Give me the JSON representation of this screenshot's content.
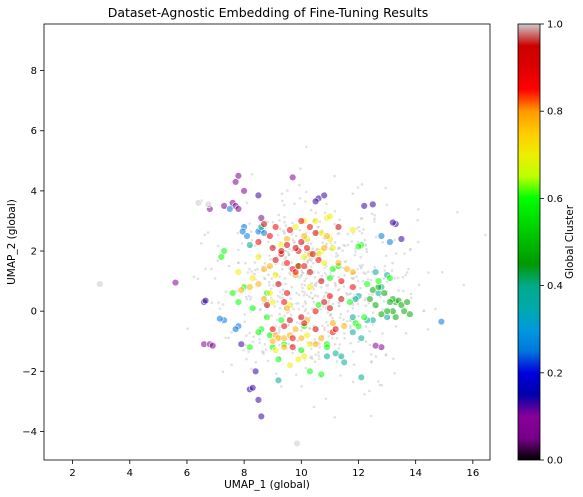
{
  "chart_data": {
    "type": "scatter",
    "title": "Dataset-Agnostic Embedding of Fine-Tuning Results",
    "xlabel": "UMAP_1 (global)",
    "ylabel": "UMAP_2 (global)",
    "xlim": [
      1.0,
      16.6
    ],
    "ylim": [
      -4.95,
      9.55
    ],
    "xticks": [
      "2",
      "4",
      "6",
      "8",
      "10",
      "12",
      "14",
      "16"
    ],
    "xtick_values": [
      2,
      4,
      6,
      8,
      10,
      12,
      14,
      16
    ],
    "yticks": [
      "−4",
      "−2",
      "0",
      "2",
      "4",
      "6",
      "8"
    ],
    "ytick_values": [
      -4,
      -2,
      0,
      2,
      4,
      6,
      8
    ],
    "grid": false,
    "colormap": "nipy_spectral",
    "colorbar": {
      "label": "Global Cluster",
      "range": [
        0,
        1
      ],
      "ticks": [
        "0.0",
        "0.2",
        "0.4",
        "0.6",
        "0.8",
        "1.0"
      ],
      "tick_values": [
        0.0,
        0.2,
        0.4,
        0.6,
        0.8,
        1.0
      ]
    },
    "background_points": {
      "color": "#c8c8c8",
      "center": [
        10.5,
        0.8
      ],
      "spread": [
        1.7,
        1.6
      ]
    },
    "series": [
      {
        "color_value": 0.07,
        "points": [
          [
            7.6,
            3.6
          ],
          [
            7.7,
            3.5
          ],
          [
            7.8,
            3.4
          ],
          [
            7.3,
            3.5
          ],
          [
            6.8,
            3.4
          ],
          [
            8.6,
            3.1
          ],
          [
            6.6,
            -1.1
          ],
          [
            6.8,
            -1.1
          ],
          [
            6.9,
            -1.15
          ],
          [
            12.8,
            -1.2
          ],
          [
            12.6,
            -1.15
          ],
          [
            7.8,
            4.5
          ],
          [
            7.7,
            4.3
          ],
          [
            8.0,
            4.0
          ],
          [
            9.7,
            4.45
          ],
          [
            5.6,
            0.95
          ]
        ]
      },
      {
        "color_value": 0.13,
        "points": [
          [
            8.2,
            -2.6
          ],
          [
            8.3,
            -2.55
          ],
          [
            8.6,
            -3.5
          ],
          [
            8.5,
            -2.95
          ],
          [
            8.4,
            -2.0
          ],
          [
            13.3,
            2.9
          ],
          [
            13.2,
            2.95
          ],
          [
            13.5,
            2.4
          ],
          [
            12.2,
            3.5
          ],
          [
            12.5,
            3.55
          ],
          [
            8.5,
            3.85
          ],
          [
            10.6,
            3.75
          ],
          [
            10.8,
            3.85
          ],
          [
            10.5,
            3.65
          ],
          [
            6.6,
            0.3
          ],
          [
            6.65,
            0.35
          ],
          [
            7.9,
            -1.1
          ]
        ]
      },
      {
        "color_value": 0.25,
        "points": [
          [
            7.8,
            -0.5
          ],
          [
            7.7,
            -0.6
          ],
          [
            7.3,
            -0.3
          ],
          [
            7.15,
            -0.25
          ],
          [
            8.6,
            2.7
          ],
          [
            8.5,
            2.65
          ],
          [
            8.7,
            2.6
          ],
          [
            12.8,
            2.5
          ],
          [
            13.1,
            2.3
          ],
          [
            8.1,
            2.5
          ],
          [
            14.9,
            -0.35
          ],
          [
            7.5,
            3.4
          ],
          [
            8.0,
            2.8
          ],
          [
            7.95,
            2.65
          ]
        ]
      },
      {
        "color_value": 0.38,
        "points": [
          [
            12.5,
            -0.3
          ],
          [
            12.3,
            -0.3
          ],
          [
            11.8,
            -0.2
          ],
          [
            12.0,
            0.5
          ],
          [
            13.0,
            1.2
          ],
          [
            12.6,
            1.3
          ],
          [
            12.8,
            0.8
          ],
          [
            11.9,
            0.4
          ],
          [
            11.8,
            -0.7
          ],
          [
            11.4,
            -1.5
          ],
          [
            11.2,
            -1.4
          ],
          [
            13.0,
            -0.2
          ],
          [
            12.1,
            -0.9
          ],
          [
            12.1,
            -2.2
          ],
          [
            11.5,
            -1.7
          ],
          [
            9.2,
            -2.3
          ],
          [
            10.9,
            -1.5
          ],
          [
            8.2,
            2.2
          ],
          [
            8.6,
            2.8
          ],
          [
            12.7,
            0.6
          ]
        ]
      },
      {
        "color_value": 0.47,
        "points": [
          [
            13.3,
            0.3
          ],
          [
            13.2,
            0.4
          ],
          [
            13.4,
            0.35
          ],
          [
            13.5,
            0.2
          ],
          [
            13.1,
            0.3
          ],
          [
            12.7,
            0.8
          ],
          [
            12.9,
            0.6
          ],
          [
            13.2,
            0.0
          ],
          [
            13.6,
            0.0
          ],
          [
            13.0,
            0.0
          ],
          [
            12.8,
            -0.1
          ],
          [
            13.3,
            -0.2
          ],
          [
            12.6,
            0.2
          ],
          [
            13.7,
            0.3
          ],
          [
            12.5,
            0.7
          ],
          [
            12.4,
            0.4
          ],
          [
            13.8,
            -0.1
          ]
        ]
      },
      {
        "color_value": 0.6,
        "points": [
          [
            8.9,
            -0.8
          ],
          [
            9.0,
            -1.2
          ],
          [
            9.2,
            -1.6
          ],
          [
            8.6,
            -0.6
          ],
          [
            8.8,
            -0.2
          ],
          [
            8.5,
            -0.7
          ],
          [
            11.9,
            -0.4
          ],
          [
            12.0,
            -0.5
          ],
          [
            12.3,
            0.9
          ],
          [
            11.7,
            0.3
          ],
          [
            11.1,
            1.4
          ],
          [
            10.6,
            0.2
          ],
          [
            12.1,
            2.2
          ],
          [
            12.0,
            2.15
          ],
          [
            7.3,
            2.0
          ],
          [
            7.6,
            0.6
          ],
          [
            7.8,
            0.3
          ],
          [
            8.0,
            0.8
          ],
          [
            8.3,
            0.1
          ],
          [
            11.0,
            1.1
          ],
          [
            10.0,
            -1.3
          ],
          [
            9.4,
            -1.1
          ],
          [
            10.1,
            -0.5
          ],
          [
            10.9,
            -1.1
          ],
          [
            10.3,
            -2.0
          ],
          [
            10.7,
            -2.1
          ],
          [
            10.9,
            -1.2
          ],
          [
            8.2,
            -1.2
          ],
          [
            9.3,
            -0.3
          ],
          [
            9.9,
            1.5
          ],
          [
            11.3,
            1.5
          ],
          [
            8.8,
            0.6
          ],
          [
            12.2,
            -0.2
          ],
          [
            12.7,
            1.0
          ],
          [
            13.1,
            1.1
          ],
          [
            7.2,
            1.8
          ]
        ]
      },
      {
        "color_value": 0.7,
        "points": [
          [
            9.8,
            2.8
          ],
          [
            10.1,
            3.0
          ],
          [
            10.9,
            3.1
          ],
          [
            11.0,
            2.4
          ],
          [
            10.7,
            2.0
          ],
          [
            10.1,
            1.8
          ],
          [
            8.9,
            0.6
          ],
          [
            9.6,
            0.2
          ],
          [
            9.6,
            -1.8
          ],
          [
            9.1,
            -1.3
          ],
          [
            10.2,
            -0.8
          ],
          [
            10.3,
            0.8
          ],
          [
            9.1,
            1.2
          ],
          [
            10.6,
            1.9
          ],
          [
            10.8,
            1.6
          ],
          [
            9.3,
            2.2
          ],
          [
            8.5,
            1.8
          ],
          [
            9.9,
            -1.6
          ],
          [
            10.3,
            -1.1
          ],
          [
            10.1,
            -1.5
          ],
          [
            8.3,
            1.1
          ],
          [
            7.8,
            1.3
          ],
          [
            11.1,
            2.1
          ],
          [
            9.0,
            0.3
          ],
          [
            10.5,
            3.0
          ],
          [
            10.7,
            2.6
          ],
          [
            11.8,
            2.7
          ],
          [
            10.2,
            2.4
          ],
          [
            11.0,
            3.15
          ]
        ]
      },
      {
        "color_value": 0.78,
        "points": [
          [
            8.2,
            0.8
          ],
          [
            8.5,
            0.9
          ],
          [
            8.7,
            0.4
          ],
          [
            9.1,
            -0.8
          ],
          [
            9.2,
            -0.9
          ],
          [
            9.0,
            -1.0
          ],
          [
            9.4,
            -0.9
          ],
          [
            9.8,
            -0.6
          ],
          [
            9.6,
            -0.8
          ],
          [
            10.0,
            -0.9
          ],
          [
            10.5,
            -1.1
          ],
          [
            10.7,
            -0.9
          ],
          [
            11.5,
            -0.5
          ],
          [
            10.3,
            1.9
          ],
          [
            10.8,
            2.1
          ],
          [
            10.9,
            2.5
          ],
          [
            11.3,
            1.6
          ],
          [
            11.6,
            1.4
          ],
          [
            11.8,
            1.3
          ],
          [
            8.7,
            1.4
          ],
          [
            7.9,
            0.7
          ],
          [
            9.4,
            -1.2
          ],
          [
            10.2,
            -0.3
          ],
          [
            11.1,
            -0.4
          ],
          [
            9.8,
            1.2
          ],
          [
            9.5,
            0.1
          ],
          [
            8.9,
            1.5
          ],
          [
            10.1,
            2.5
          ],
          [
            9.5,
            2.4
          ]
        ]
      },
      {
        "color_value": 0.87,
        "points": [
          [
            9.7,
            1.4
          ],
          [
            9.8,
            1.3
          ],
          [
            9.9,
            1.5
          ],
          [
            9.5,
            1.6
          ],
          [
            10.1,
            1.5
          ],
          [
            10.0,
            3.0
          ],
          [
            10.3,
            2.8
          ],
          [
            9.6,
            2.7
          ],
          [
            9.5,
            0.6
          ],
          [
            9.4,
            -0.5
          ],
          [
            10.1,
            -0.4
          ],
          [
            9.7,
            -0.9
          ],
          [
            9.7,
            -1.2
          ],
          [
            11.1,
            -0.7
          ],
          [
            11.2,
            -0.6
          ],
          [
            11.4,
            1.0
          ],
          [
            10.5,
            0.0
          ],
          [
            9.9,
            2.0
          ],
          [
            9.1,
            2.8
          ],
          [
            9.3,
            1.9
          ],
          [
            8.9,
            2.5
          ],
          [
            10.6,
            1.7
          ],
          [
            11.0,
            0.5
          ],
          [
            9.0,
            -0.6
          ],
          [
            10.2,
            2.1
          ],
          [
            11.8,
            0.8
          ],
          [
            9.4,
            0.3
          ],
          [
            8.5,
            2.3
          ]
        ]
      },
      {
        "color_value": 0.95,
        "points": [
          [
            9.3,
            2.0
          ],
          [
            9.5,
            2.2
          ],
          [
            9.8,
            2.1
          ],
          [
            10.4,
            1.9
          ],
          [
            9.1,
            1.7
          ],
          [
            10.0,
            -0.2
          ],
          [
            10.8,
            0.3
          ],
          [
            10.5,
            -0.6
          ],
          [
            9.2,
            0.9
          ],
          [
            11.0,
            0.1
          ],
          [
            10.3,
            1.3
          ],
          [
            8.8,
            0.2
          ],
          [
            10.7,
            1.0
          ],
          [
            9.6,
            -0.3
          ],
          [
            11.4,
            0.4
          ],
          [
            10.0,
            2.3
          ],
          [
            9.0,
            2.1
          ],
          [
            8.7,
            2.9
          ],
          [
            11.3,
            2.8
          ],
          [
            10.5,
            2.6
          ]
        ]
      },
      {
        "color_value": 1.0,
        "points": [
          [
            6.4,
            3.6
          ],
          [
            6.75,
            3.55
          ],
          [
            2.95,
            0.9
          ],
          [
            9.85,
            -4.4
          ]
        ]
      }
    ]
  }
}
